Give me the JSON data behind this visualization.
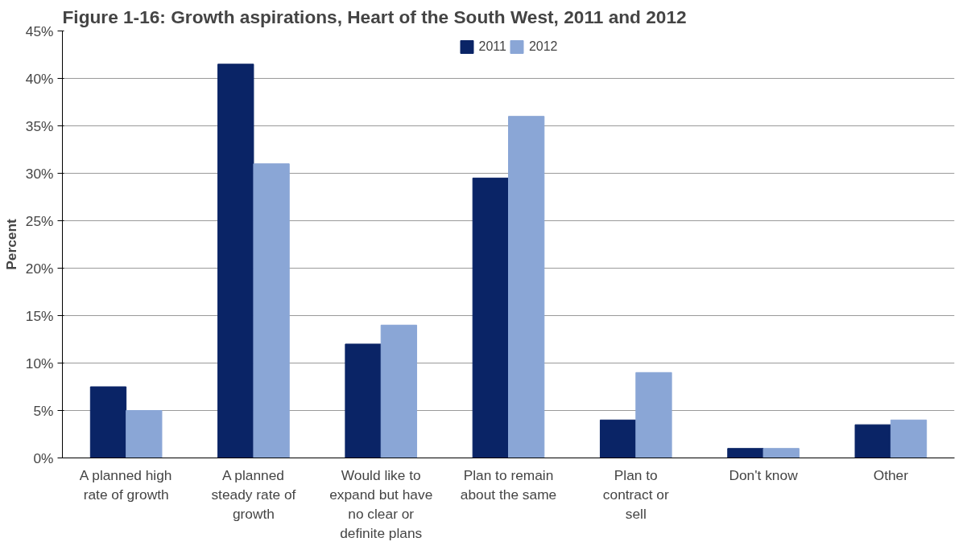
{
  "chart_data": {
    "type": "bar",
    "title": "Figure 1-16: Growth aspirations, Heart of the South West, 2011 and 2012",
    "ylabel": "Percent",
    "categories": [
      "A planned high rate of growth",
      "A planned steady rate of growth",
      "Would like to expand but have no clear or definite plans",
      "Plan to remain about the same",
      "Plan to contract or sell",
      "Don't know",
      "Other"
    ],
    "series": [
      {
        "name": "2011",
        "color": "#0a2466",
        "values": [
          7.5,
          41.5,
          12,
          29.5,
          4,
          1,
          3.5
        ]
      },
      {
        "name": "2012",
        "color": "#8aa6d6",
        "values": [
          5,
          31,
          14,
          36,
          9,
          1,
          4
        ]
      }
    ],
    "ylim": [
      0,
      45
    ],
    "yticks": [
      {
        "value": 0,
        "label": "0%"
      },
      {
        "value": 5,
        "label": "5%"
      },
      {
        "value": 10,
        "label": "10%"
      },
      {
        "value": 15,
        "label": "15%"
      },
      {
        "value": 20,
        "label": "20%"
      },
      {
        "value": 25,
        "label": "25%"
      },
      {
        "value": 30,
        "label": "30%"
      },
      {
        "value": 35,
        "label": "35%"
      },
      {
        "value": 40,
        "label": "40%"
      },
      {
        "value": 45,
        "label": "45%"
      }
    ],
    "grid": "y",
    "legend": "top"
  }
}
